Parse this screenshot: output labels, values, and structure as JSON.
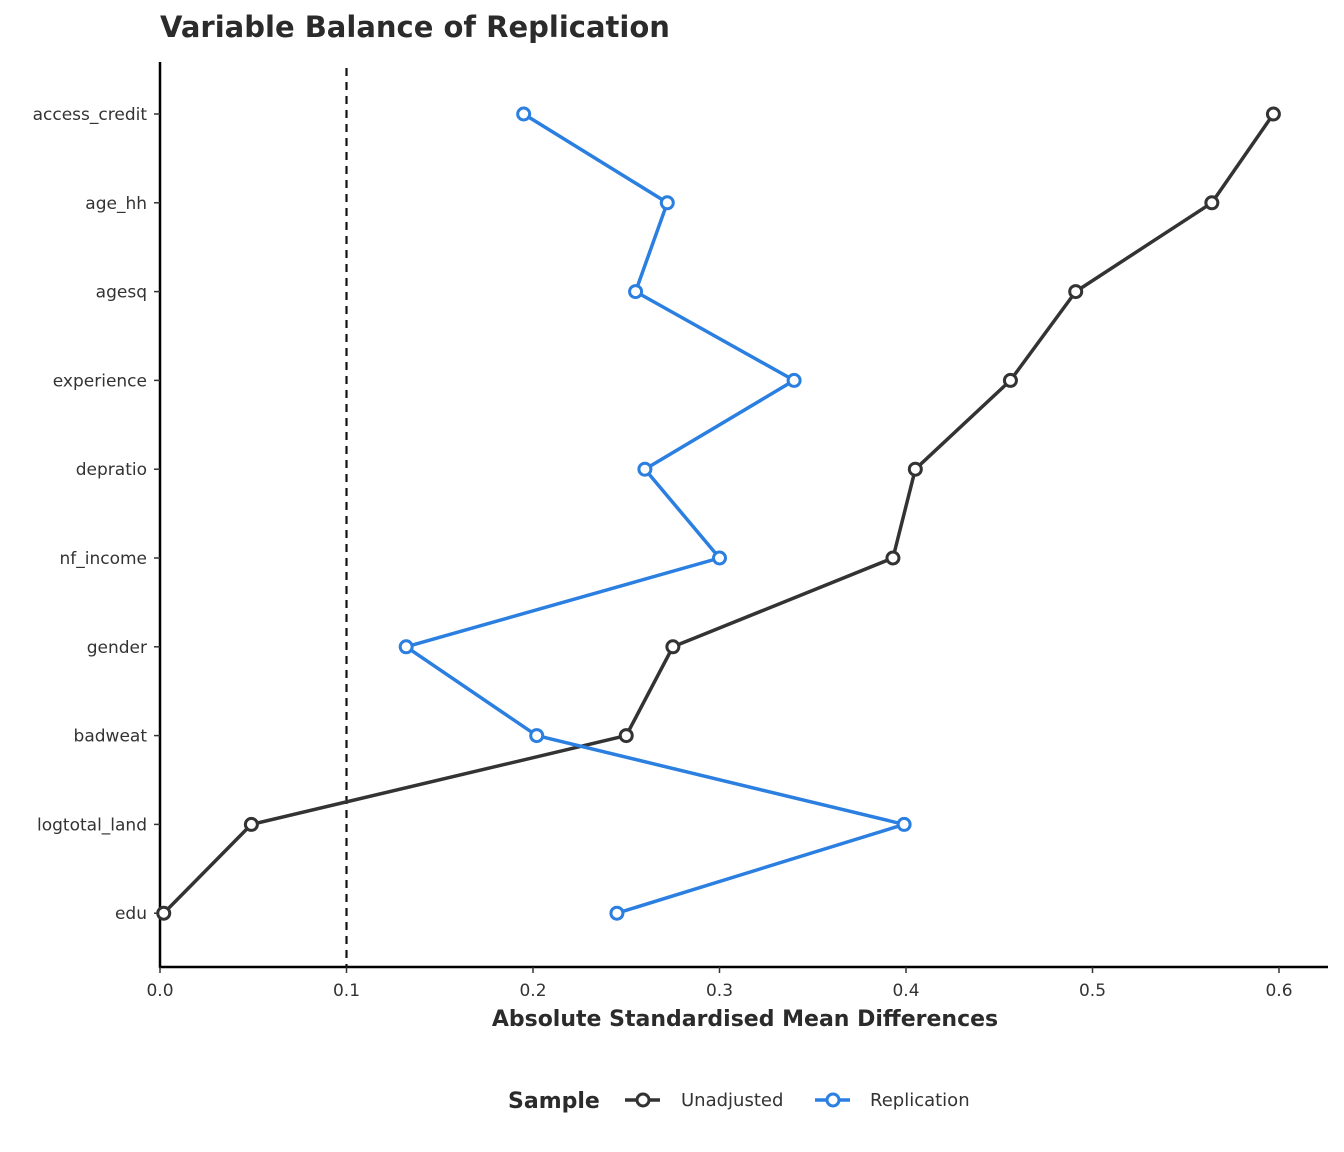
{
  "chart_data": {
    "type": "line",
    "title": "Variable Balance of Replication",
    "xlabel": "Absolute Standardised Mean Differences",
    "ylabel": "",
    "xlim": [
      0,
      0.625
    ],
    "xticks": [
      0,
      0.1,
      0.2,
      0.3,
      0.4,
      0.5,
      0.6
    ],
    "xtick_labels": [
      "0.0",
      "0.1",
      "0.2",
      "0.3",
      "0.4",
      "0.5",
      "0.6"
    ],
    "threshold": 0.1,
    "categories": [
      "access_credit",
      "age_hh",
      "agesq",
      "experience",
      "depratio",
      "nf_income",
      "gender",
      "badweat",
      "logtotal_land",
      "edu"
    ],
    "series": [
      {
        "name": "Unadjusted",
        "color": "#333333",
        "values": [
          0.597,
          0.564,
          0.491,
          0.456,
          0.405,
          0.393,
          0.275,
          0.25,
          0.049,
          0.002
        ]
      },
      {
        "name": "Replication",
        "color": "#2a7fe0",
        "values": [
          0.195,
          0.272,
          0.255,
          0.34,
          0.26,
          0.3,
          0.132,
          0.202,
          0.399,
          0.245
        ]
      }
    ],
    "legend": {
      "title": "Sample",
      "position": "bottom"
    },
    "grid": false
  }
}
